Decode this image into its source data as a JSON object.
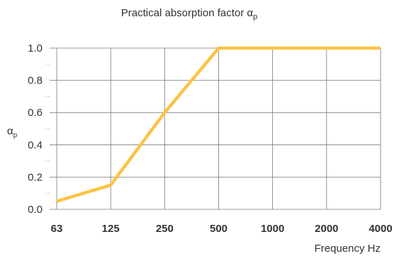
{
  "chart_data": {
    "type": "line",
    "title": {
      "main": "Practical absorption factor α",
      "sub": "p"
    },
    "ylabel": {
      "main": "α",
      "sub": "p"
    },
    "xlabel": "Frequency Hz",
    "categories": [
      "63",
      "125",
      "250",
      "500",
      "1000",
      "2000",
      "4000"
    ],
    "series": [
      {
        "values": [
          0.05,
          0.15,
          0.6,
          1.0,
          1.0,
          1.0,
          1.0
        ],
        "color": "#FBC346"
      }
    ],
    "ylim": [
      0,
      1.0
    ],
    "yticks": [
      "0.0",
      "0.2",
      "0.4",
      "0.6",
      "0.8",
      "1.0"
    ],
    "grid": true
  }
}
